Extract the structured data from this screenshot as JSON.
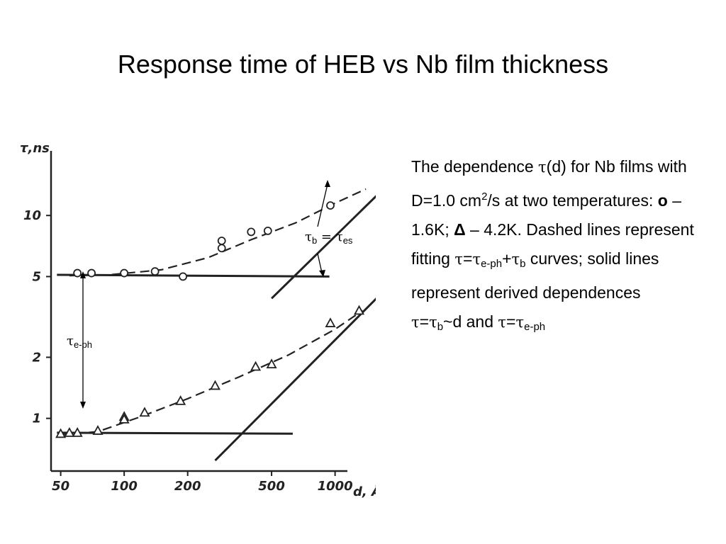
{
  "slide": {
    "title": "Response time of HEB vs Nb film thickness"
  },
  "description": {
    "p1": "The dependence ",
    "tau1": "τ",
    "p2": "(d) for Nb films with D=1.0 cm",
    "sup2": "2",
    "p3": "/s at two temperatures: ",
    "circle_marker": "o",
    "p4": " – 1.6K; ",
    "delta_marker": "Δ",
    "p5": " – 4.2K. Dashed lines represent fitting ",
    "tau2": "τ",
    "eq1": "=",
    "tau3": "τ",
    "sub_eph1": "e-ph",
    "plus": "+",
    "tau4": "τ",
    "sub_b1": "b",
    "p6": " curves; solid lines represent derived dependences ",
    "tau5": "τ",
    "eq2": "=",
    "tau6": "τ",
    "sub_b2": "b",
    "p7": "~d and ",
    "tau7": "τ",
    "eq3": "=",
    "tau8": "τ",
    "sub_eph2": "e-ph"
  },
  "annotations": {
    "tau_b_es": {
      "t1": "τ",
      "s1": "b",
      "t2": " = τ",
      "s2": "es"
    },
    "tau_eph": {
      "t": "τ",
      "s": "e-ph"
    }
  },
  "chart_data": {
    "type": "scatter",
    "x_scale": "log",
    "y_scale": "log",
    "ylabel": "τ,ns",
    "xlabel": "d, Å",
    "x_ticks": [
      50,
      100,
      200,
      500,
      1000
    ],
    "x_tick_labels": [
      "50",
      "100",
      "200",
      "500",
      "1000"
    ],
    "y_ticks": [
      1,
      2,
      5,
      10
    ],
    "y_tick_labels": [
      "1",
      "2",
      "5",
      "10"
    ],
    "xlim": [
      45,
      1500
    ],
    "ylim": [
      0.55,
      20
    ],
    "grid": false,
    "series": [
      {
        "marker": "circle",
        "kind": "points",
        "points": [
          [
            60,
            5.2
          ],
          [
            70,
            5.2
          ],
          [
            100,
            5.2
          ],
          [
            140,
            5.3
          ],
          [
            190,
            5.0
          ],
          [
            290,
            7.5
          ],
          [
            290,
            6.9
          ],
          [
            400,
            8.3
          ],
          [
            480,
            8.4
          ],
          [
            950,
            11.2
          ]
        ]
      },
      {
        "marker": "triangle",
        "kind": "points",
        "points": [
          [
            50,
            0.84
          ],
          [
            55,
            0.85
          ],
          [
            60,
            0.85
          ],
          [
            75,
            0.87
          ],
          [
            100,
            1.02
          ],
          [
            100,
            0.99
          ],
          [
            125,
            1.07
          ],
          [
            185,
            1.22
          ],
          [
            270,
            1.45
          ],
          [
            420,
            1.8
          ],
          [
            500,
            1.85
          ],
          [
            950,
            2.95
          ],
          [
            1300,
            3.4
          ]
        ]
      },
      {
        "kind": "dashed_fit",
        "points": [
          [
            55,
            5.05
          ],
          [
            85,
            5.1
          ],
          [
            150,
            5.4
          ],
          [
            250,
            6.2
          ],
          [
            400,
            7.6
          ],
          [
            650,
            9.2
          ],
          [
            1000,
            11.5
          ],
          [
            1400,
            13.5
          ]
        ]
      },
      {
        "kind": "dashed_fit",
        "points": [
          [
            50,
            0.83
          ],
          [
            75,
            0.86
          ],
          [
            120,
            1.02
          ],
          [
            200,
            1.25
          ],
          [
            350,
            1.6
          ],
          [
            600,
            2.05
          ],
          [
            1000,
            2.75
          ],
          [
            1350,
            3.4
          ]
        ]
      },
      {
        "kind": "solid_line",
        "points": [
          [
            48,
            5.1
          ],
          [
            940,
            5.0
          ]
        ]
      },
      {
        "kind": "solid_line",
        "points": [
          [
            48,
            0.85
          ],
          [
            630,
            0.84
          ]
        ]
      },
      {
        "kind": "solid_line",
        "points": [
          [
            500,
            3.9
          ],
          [
            2000,
            16
          ]
        ]
      },
      {
        "kind": "solid_line",
        "points": [
          [
            270,
            0.62
          ],
          [
            1800,
            4.5
          ]
        ]
      }
    ]
  }
}
